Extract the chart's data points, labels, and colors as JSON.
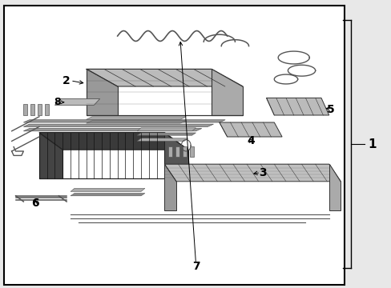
{
  "title": "",
  "background_color": "#e8e8e8",
  "border_color": "#000000",
  "diagram_bg": "#ffffff",
  "label_color": "#000000",
  "part_color": "#555555",
  "part_color_dark": "#333333",
  "part_color_light": "#888888",
  "part_color_lighter": "#aaaaaa",
  "figsize": [
    4.89,
    3.6
  ],
  "dpi": 100
}
